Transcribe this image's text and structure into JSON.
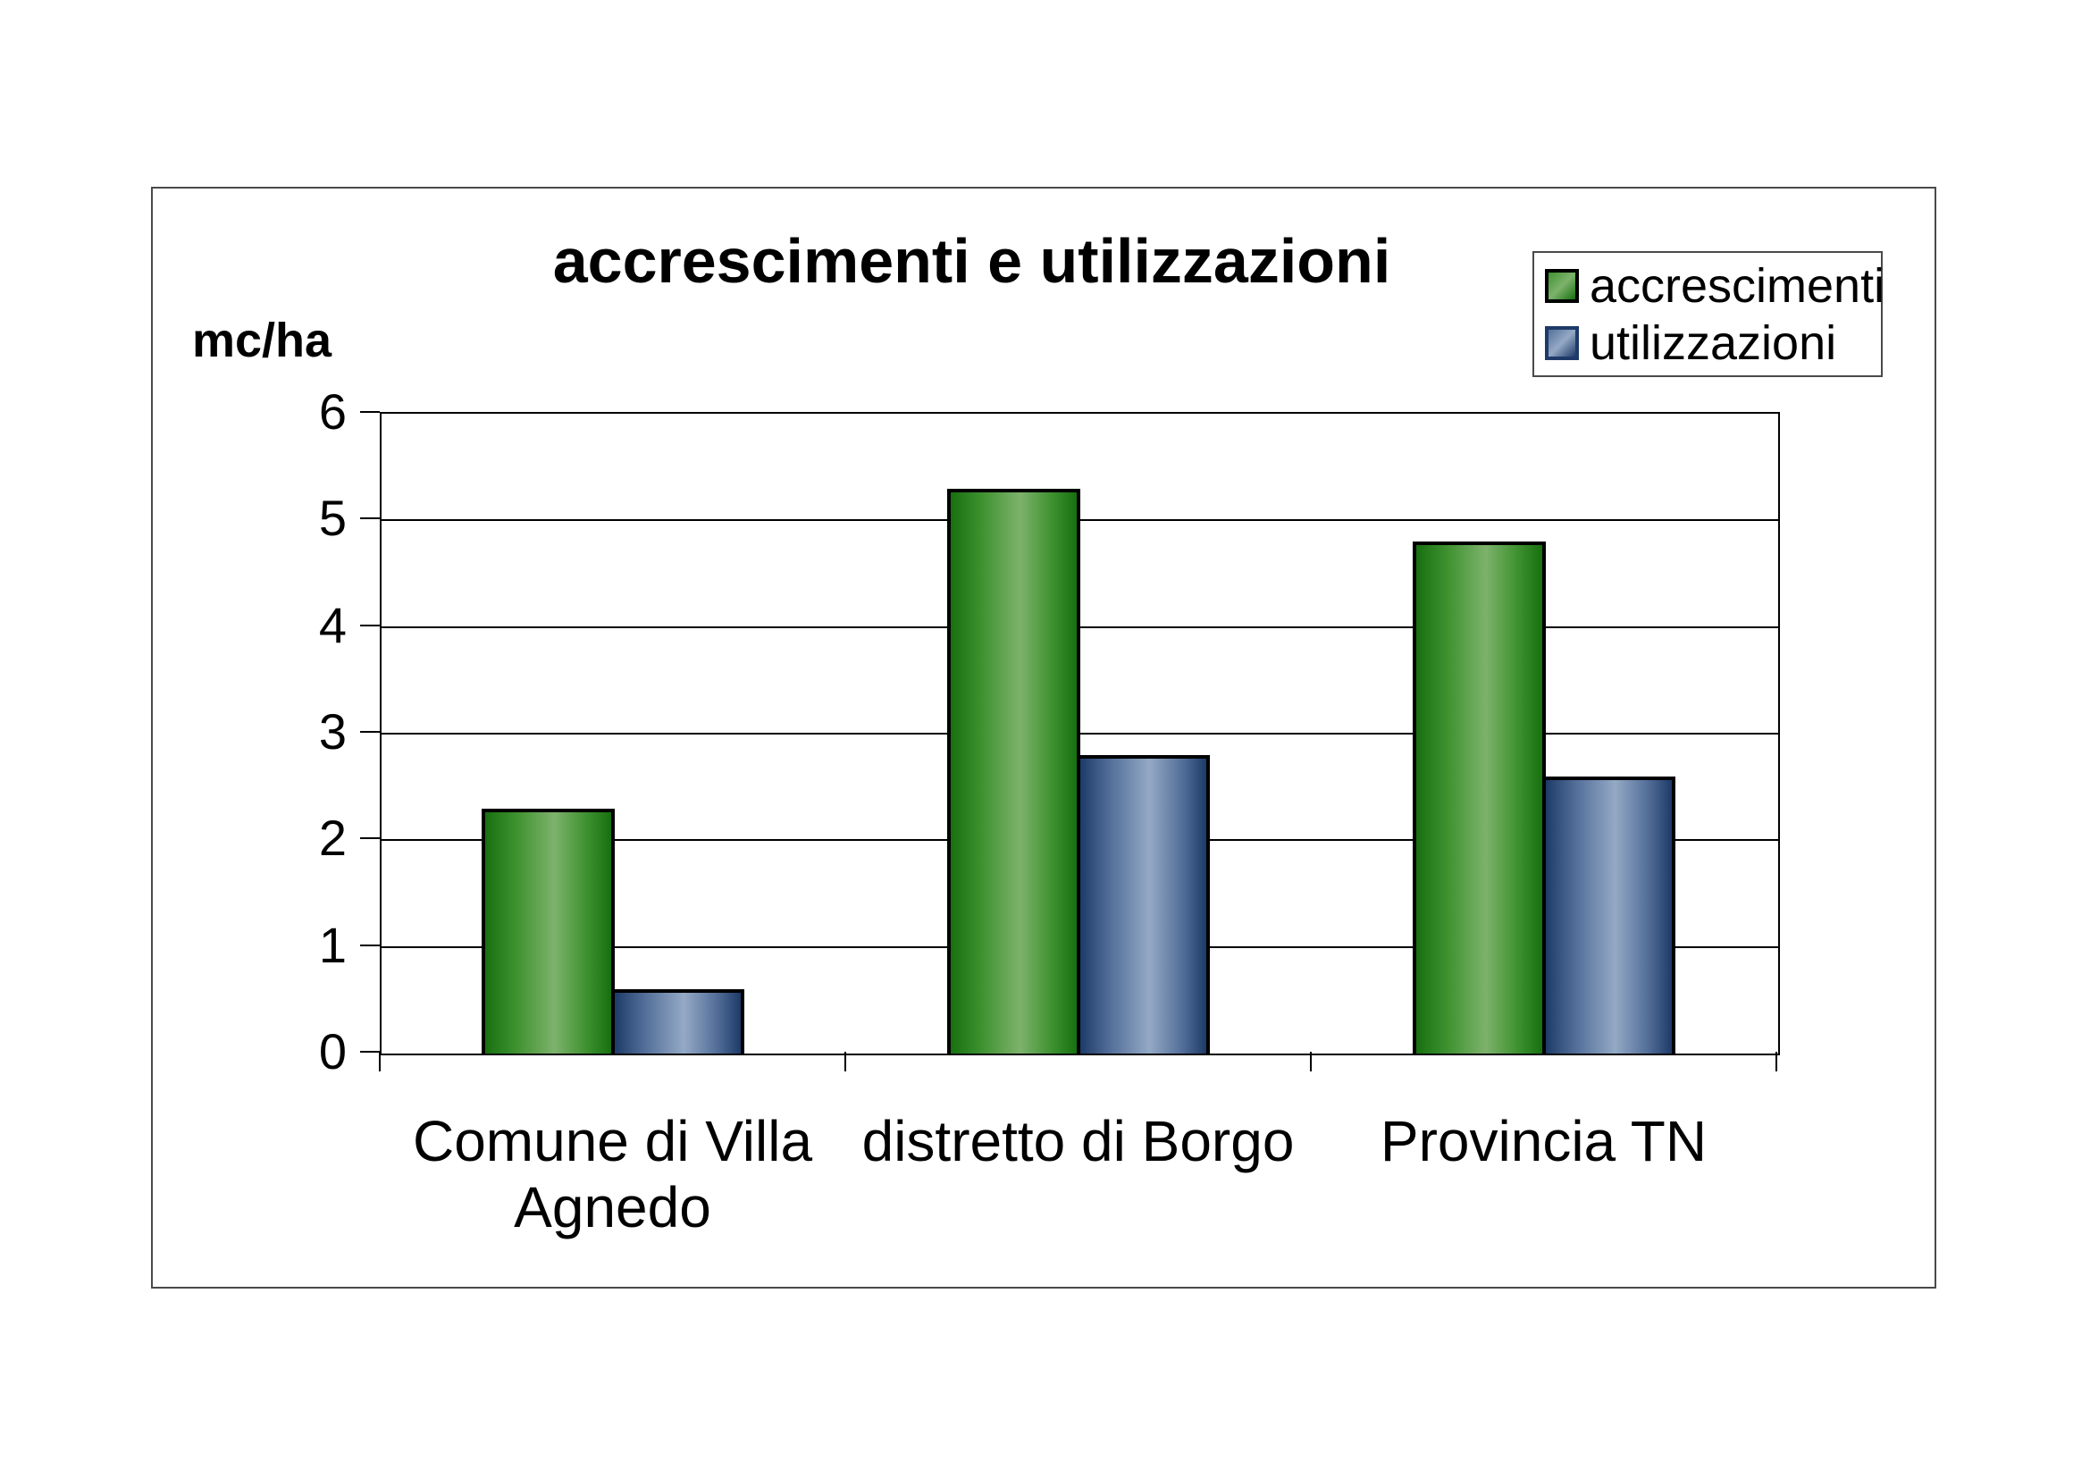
{
  "page": {
    "background_color": "#ffffff",
    "frame_border_color": "#4a4a4a"
  },
  "chart_data": {
    "type": "bar",
    "title": "accrescimenti e utilizzazioni",
    "ylabel": "mc/ha",
    "xlabel": "",
    "categories": [
      "Comune di Villa Agnedo",
      "distretto di Borgo",
      "Provincia TN"
    ],
    "series": [
      {
        "name": "accrescimenti",
        "values": [
          2.3,
          5.3,
          4.8
        ],
        "color_dark": "#17700F",
        "color_mid": "#3F9230",
        "color_light": "#7DB26C"
      },
      {
        "name": "utilizzazioni",
        "values": [
          0.6,
          2.8,
          2.6
        ],
        "color_dark": "#1E3A68",
        "color_mid": "#55719B",
        "color_light": "#94A9C5"
      }
    ],
    "ylim": [
      0,
      6
    ],
    "yticks": [
      0,
      1,
      2,
      3,
      4,
      5,
      6
    ],
    "grid": "horizontal",
    "gridline_color": "#000000",
    "bar_outline_color": "#000000",
    "legend_position": "top-right"
  }
}
